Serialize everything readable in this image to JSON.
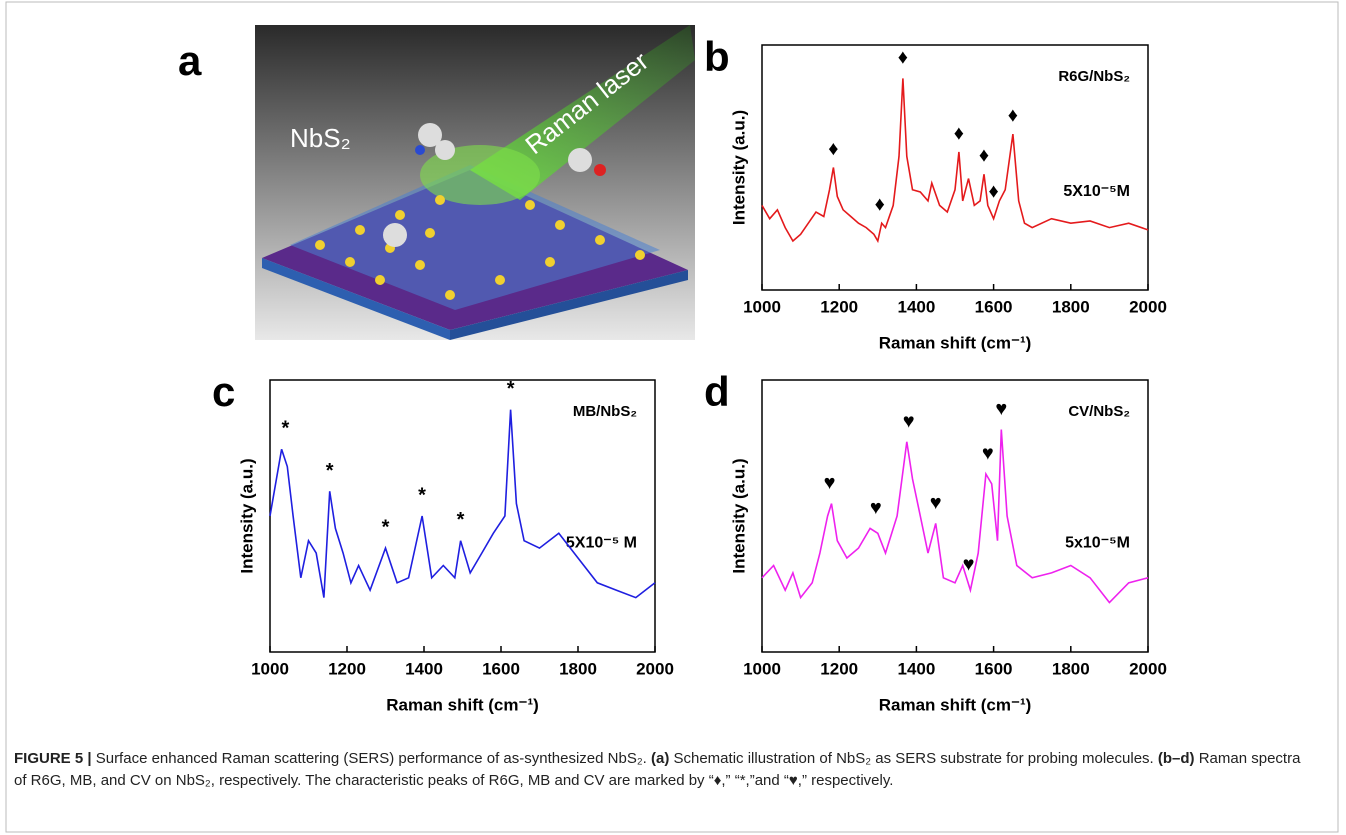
{
  "panel_a": {
    "label": "a",
    "texts": [
      "NbS₂",
      "Raman laser"
    ]
  },
  "chart_data": [
    {
      "type": "line",
      "panel_label": "b",
      "sample": "R6G/NbS₂",
      "concentration": "5X10⁻⁵M",
      "xlabel": "Raman shift (cm⁻¹)",
      "ylabel": "Intensity (a.u.)",
      "xlim": [
        1000,
        2000
      ],
      "xticks": [
        1000,
        1200,
        1400,
        1600,
        1800,
        2000
      ],
      "ylim": [
        0,
        110
      ],
      "series": [
        {
          "color": "#e41a1c",
          "x": [
            1000,
            1020,
            1040,
            1060,
            1080,
            1100,
            1120,
            1140,
            1160,
            1175,
            1185,
            1195,
            1210,
            1230,
            1250,
            1270,
            1290,
            1300,
            1310,
            1320,
            1340,
            1355,
            1365,
            1375,
            1390,
            1410,
            1430,
            1440,
            1460,
            1480,
            1500,
            1510,
            1520,
            1535,
            1550,
            1565,
            1575,
            1585,
            1600,
            1615,
            1630,
            1650,
            1665,
            1680,
            1700,
            1750,
            1800,
            1850,
            1900,
            1950,
            2000
          ],
          "values": [
            38,
            32,
            36,
            28,
            22,
            25,
            30,
            35,
            33,
            45,
            55,
            42,
            36,
            33,
            30,
            28,
            25,
            22,
            30,
            28,
            38,
            60,
            95,
            60,
            45,
            44,
            40,
            48,
            38,
            35,
            45,
            62,
            40,
            50,
            38,
            40,
            52,
            38,
            32,
            40,
            45,
            70,
            40,
            30,
            28,
            32,
            30,
            31,
            28,
            30,
            27
          ]
        }
      ],
      "annotations": [
        {
          "text": "♦",
          "x": 1185,
          "y": 63
        },
        {
          "text": "♦",
          "x": 1305,
          "y": 38
        },
        {
          "text": "♦",
          "x": 1365,
          "y": 104
        },
        {
          "text": "♦",
          "x": 1510,
          "y": 70
        },
        {
          "text": "♦",
          "x": 1575,
          "y": 60
        },
        {
          "text": "♦",
          "x": 1600,
          "y": 44
        },
        {
          "text": "♦",
          "x": 1650,
          "y": 78
        }
      ]
    },
    {
      "type": "line",
      "panel_label": "c",
      "sample": "MB/NbS₂",
      "concentration": "5X10⁻⁵ M",
      "xlabel": "Raman shift (cm⁻¹)",
      "ylabel": "Intensity (a.u.)",
      "xlim": [
        1000,
        2000
      ],
      "xticks": [
        1000,
        1200,
        1400,
        1600,
        1800,
        2000
      ],
      "ylim": [
        0,
        110
      ],
      "series": [
        {
          "color": "#1f1fe0",
          "x": [
            1000,
            1030,
            1045,
            1060,
            1080,
            1100,
            1120,
            1140,
            1155,
            1170,
            1190,
            1210,
            1230,
            1260,
            1300,
            1330,
            1360,
            1395,
            1420,
            1450,
            1480,
            1495,
            1520,
            1550,
            1580,
            1610,
            1625,
            1640,
            1660,
            1700,
            1750,
            1800,
            1850,
            1900,
            1950,
            2000
          ],
          "values": [
            55,
            82,
            75,
            55,
            30,
            45,
            40,
            22,
            65,
            50,
            40,
            28,
            35,
            25,
            42,
            28,
            30,
            55,
            30,
            35,
            30,
            45,
            32,
            40,
            48,
            55,
            98,
            60,
            45,
            42,
            48,
            38,
            28,
            25,
            22,
            28
          ]
        }
      ],
      "annotations": [
        {
          "text": "*",
          "x": 1040,
          "y": 90
        },
        {
          "text": "*",
          "x": 1155,
          "y": 73
        },
        {
          "text": "*",
          "x": 1300,
          "y": 50
        },
        {
          "text": "*",
          "x": 1395,
          "y": 63
        },
        {
          "text": "*",
          "x": 1495,
          "y": 53
        },
        {
          "text": "*",
          "x": 1625,
          "y": 106
        }
      ]
    },
    {
      "type": "line",
      "panel_label": "d",
      "sample": "CV/NbS₂",
      "concentration": "5x10⁻⁵M",
      "xlabel": "Raman shift (cm⁻¹)",
      "ylabel": "Intensity (a.u.)",
      "xlim": [
        1000,
        2000
      ],
      "xticks": [
        1000,
        1200,
        1400,
        1600,
        1800,
        2000
      ],
      "ylim": [
        0,
        110
      ],
      "series": [
        {
          "color": "#ee22ee",
          "x": [
            1000,
            1030,
            1060,
            1080,
            1100,
            1130,
            1150,
            1170,
            1180,
            1195,
            1220,
            1250,
            1280,
            1300,
            1320,
            1350,
            1375,
            1390,
            1410,
            1430,
            1450,
            1470,
            1500,
            1520,
            1540,
            1560,
            1580,
            1595,
            1610,
            1620,
            1635,
            1660,
            1700,
            1750,
            1800,
            1850,
            1900,
            1950,
            2000
          ],
          "values": [
            30,
            35,
            25,
            32,
            22,
            28,
            40,
            55,
            60,
            45,
            38,
            42,
            50,
            48,
            40,
            55,
            85,
            70,
            55,
            40,
            52,
            30,
            28,
            35,
            25,
            40,
            72,
            68,
            45,
            90,
            55,
            35,
            30,
            32,
            35,
            30,
            20,
            28,
            30
          ]
        }
      ],
      "annotations": [
        {
          "text": "♥",
          "x": 1175,
          "y": 68
        },
        {
          "text": "♥",
          "x": 1295,
          "y": 58
        },
        {
          "text": "♥",
          "x": 1380,
          "y": 93
        },
        {
          "text": "♥",
          "x": 1450,
          "y": 60
        },
        {
          "text": "♥",
          "x": 1535,
          "y": 35
        },
        {
          "text": "♥",
          "x": 1585,
          "y": 80
        },
        {
          "text": "♥",
          "x": 1620,
          "y": 98
        }
      ]
    }
  ],
  "caption": [
    {
      "text": "FIGURE 5 | ",
      "bold": true
    },
    {
      "text": "Surface enhanced Raman scattering (SERS) performance of as-synthesized NbS₂. ",
      "bold": false
    },
    {
      "text": "(a)",
      "bold": true
    },
    {
      "text": " Schematic illustration of NbS₂ as SERS substrate for probing molecules. ",
      "bold": false
    },
    {
      "text": "(b–d)",
      "bold": true
    },
    {
      "text": " Raman spectra of R6G, MB, and CV on NbS₂, respectively. The characteristic peaks of R6G, MB and CV are marked by “♦,” “*,”and “♥,” respectively.",
      "bold": false
    }
  ]
}
